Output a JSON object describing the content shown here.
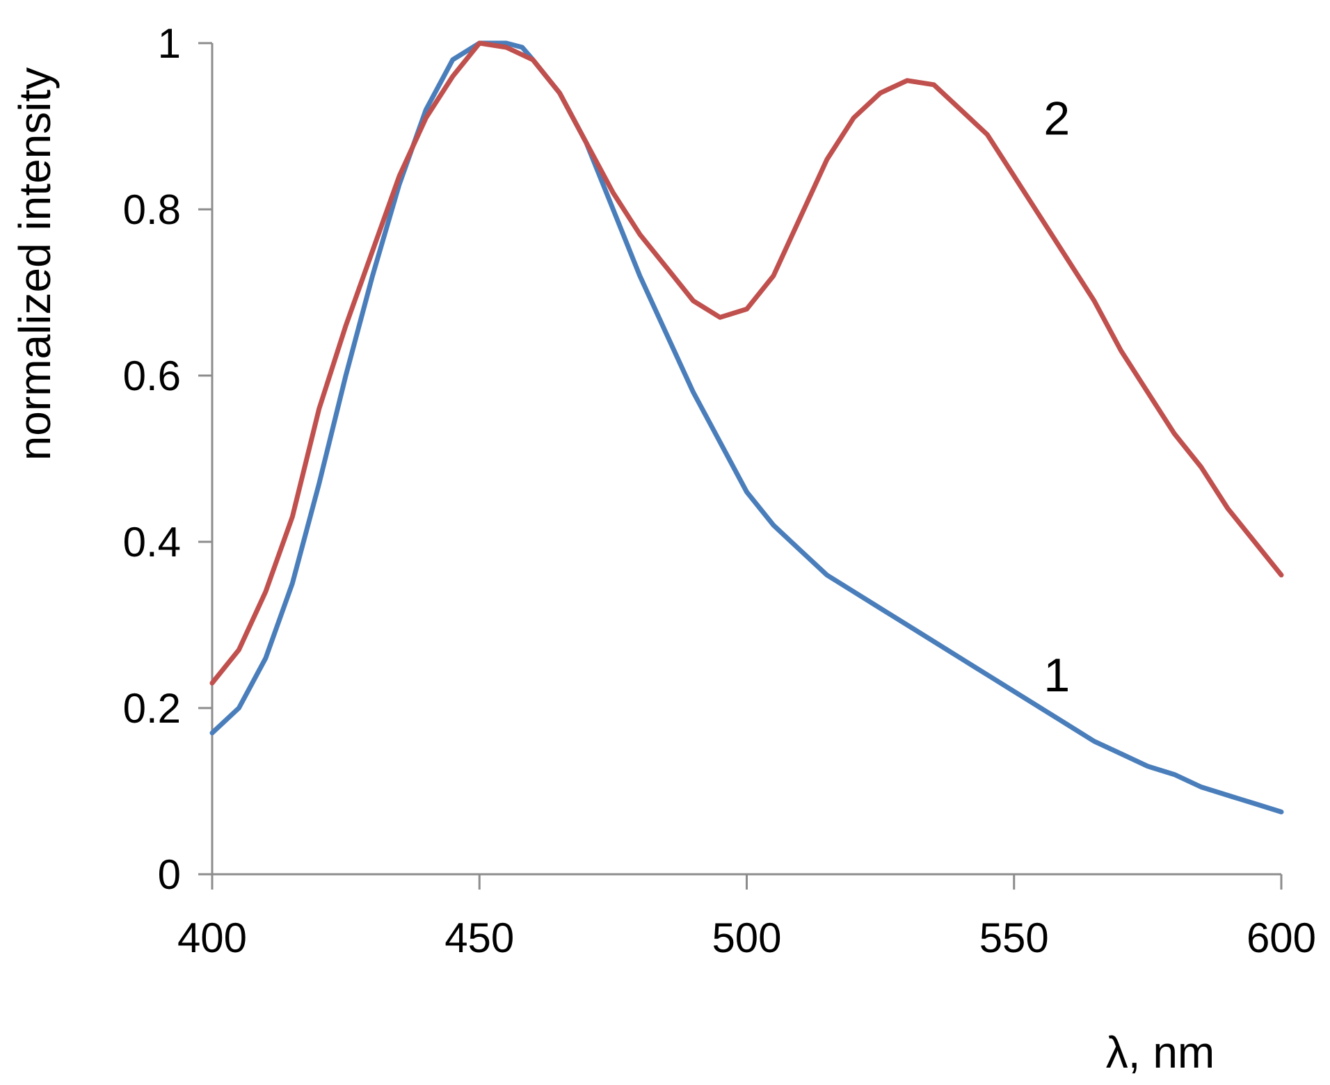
{
  "chart_data": {
    "type": "line",
    "title": "",
    "xlabel": "λ, nm",
    "ylabel": "normalized intensity",
    "xlim": [
      400,
      600
    ],
    "ylim": [
      0,
      1
    ],
    "grid": false,
    "x_ticks": [
      400,
      450,
      500,
      550,
      600
    ],
    "y_ticks": [
      0,
      0.2,
      0.4,
      0.6,
      0.8,
      1
    ],
    "x_tick_labels": [
      "400",
      "450",
      "500",
      "550",
      "600"
    ],
    "y_tick_labels": [
      "0",
      "0.2",
      "0.4",
      "0.6",
      "0.8",
      "1"
    ],
    "series": [
      {
        "label": "1",
        "color": "#4a7ebb",
        "x": [
          400,
          405,
          410,
          415,
          420,
          425,
          430,
          435,
          440,
          445,
          450,
          455,
          458,
          460,
          465,
          470,
          475,
          480,
          485,
          490,
          495,
          500,
          505,
          510,
          515,
          520,
          525,
          530,
          535,
          540,
          545,
          550,
          555,
          560,
          565,
          570,
          575,
          580,
          585,
          590,
          595,
          600
        ],
        "y": [
          0.17,
          0.2,
          0.26,
          0.35,
          0.47,
          0.6,
          0.72,
          0.83,
          0.92,
          0.98,
          1.0,
          1.0,
          0.995,
          0.98,
          0.94,
          0.88,
          0.8,
          0.72,
          0.65,
          0.58,
          0.52,
          0.46,
          0.42,
          0.39,
          0.36,
          0.34,
          0.32,
          0.3,
          0.28,
          0.26,
          0.24,
          0.22,
          0.2,
          0.18,
          0.16,
          0.145,
          0.13,
          0.12,
          0.105,
          0.095,
          0.085,
          0.075
        ]
      },
      {
        "label": "2",
        "color": "#c0504d",
        "x": [
          400,
          405,
          410,
          415,
          420,
          425,
          430,
          435,
          440,
          445,
          450,
          455,
          460,
          465,
          470,
          475,
          480,
          485,
          490,
          495,
          500,
          505,
          510,
          515,
          520,
          525,
          530,
          535,
          540,
          545,
          550,
          555,
          560,
          565,
          570,
          575,
          580,
          585,
          590,
          595,
          600
        ],
        "y": [
          0.23,
          0.27,
          0.34,
          0.43,
          0.56,
          0.66,
          0.75,
          0.84,
          0.91,
          0.96,
          1.0,
          0.995,
          0.98,
          0.94,
          0.88,
          0.82,
          0.77,
          0.73,
          0.69,
          0.67,
          0.68,
          0.72,
          0.79,
          0.86,
          0.91,
          0.94,
          0.955,
          0.95,
          0.92,
          0.89,
          0.84,
          0.79,
          0.74,
          0.69,
          0.63,
          0.58,
          0.53,
          0.49,
          0.44,
          0.4,
          0.36
        ]
      }
    ]
  }
}
